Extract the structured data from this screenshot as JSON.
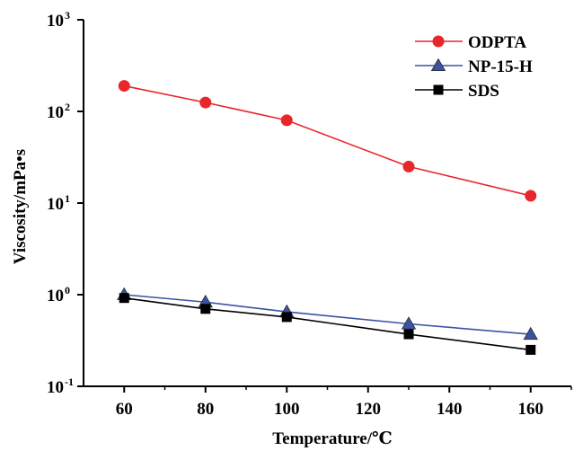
{
  "chart_data": {
    "type": "line",
    "xlabel": "Temperature/℃",
    "ylabel": "Viscosity/mPa•s",
    "yscale": "log",
    "xlim": [
      50,
      170
    ],
    "ylim": [
      0.1,
      1000
    ],
    "xticks": [
      60,
      80,
      100,
      120,
      140,
      160
    ],
    "xtick_labels": [
      "60",
      "80",
      "100",
      "120",
      "140",
      "160"
    ],
    "yticks": [
      0.1,
      1,
      10,
      100,
      1000
    ],
    "ytick_labels": [
      {
        "base": "10",
        "exp": "-1"
      },
      {
        "base": "10",
        "exp": "0"
      },
      {
        "base": "10",
        "exp": "1"
      },
      {
        "base": "10",
        "exp": "2"
      },
      {
        "base": "10",
        "exp": "3"
      }
    ],
    "grid": false,
    "legend_position": "top-right",
    "series": [
      {
        "name": "ODPTA",
        "marker": "circle",
        "color": "#e8262b",
        "x": [
          60,
          80,
          100,
          130,
          160
        ],
        "y": [
          190,
          125,
          80,
          25,
          12
        ]
      },
      {
        "name": "NP-15-H",
        "marker": "triangle",
        "color": "#3a53a4",
        "x": [
          60,
          80,
          100,
          130,
          160
        ],
        "y": [
          1.0,
          0.83,
          0.65,
          0.48,
          0.37
        ]
      },
      {
        "name": "SDS",
        "marker": "square",
        "color": "#000000",
        "x": [
          60,
          80,
          100,
          130,
          160
        ],
        "y": [
          0.92,
          0.7,
          0.57,
          0.37,
          0.25
        ]
      }
    ]
  }
}
